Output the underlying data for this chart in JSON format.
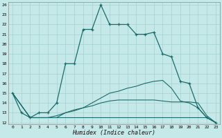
{
  "xlabel": "Humidex (Indice chaleur)",
  "bg_color": "#c5e8e8",
  "line_color": "#1a6b6b",
  "grid_color": "#a8d0d0",
  "xlim": [
    -0.5,
    23.5
  ],
  "ylim": [
    11.8,
    24.3
  ],
  "yticks": [
    12,
    13,
    14,
    15,
    16,
    17,
    18,
    19,
    20,
    21,
    22,
    23,
    24
  ],
  "xticks": [
    0,
    1,
    2,
    3,
    4,
    5,
    6,
    7,
    8,
    9,
    10,
    11,
    12,
    13,
    14,
    15,
    16,
    17,
    18,
    19,
    20,
    21,
    22,
    23
  ],
  "line1_x": [
    0,
    1,
    2,
    3,
    4,
    5,
    6,
    7,
    8,
    9,
    10,
    11,
    12,
    13,
    14,
    15,
    16,
    17,
    18,
    19,
    20,
    21,
    22,
    23
  ],
  "line1_y": [
    15,
    13,
    12.5,
    13,
    13,
    14,
    18,
    18,
    21.5,
    21.5,
    24,
    22,
    22,
    22,
    21,
    21,
    21.2,
    19,
    18.7,
    16.2,
    16,
    13.5,
    12.5,
    12
  ],
  "line2_x": [
    0,
    2,
    3,
    4,
    5,
    6,
    7,
    8,
    9,
    10,
    11,
    12,
    13,
    14,
    15,
    16,
    17,
    18,
    19,
    20,
    21,
    22,
    23
  ],
  "line2_y": [
    15,
    12.5,
    12.5,
    12.5,
    12.5,
    13,
    13.3,
    13.5,
    14,
    14.5,
    15,
    15.2,
    15.5,
    15.7,
    16,
    16.2,
    16.3,
    15.5,
    14.2,
    14.0,
    13.5,
    12.5,
    12
  ],
  "line3_x": [
    0,
    2,
    3,
    4,
    5,
    6,
    7,
    8,
    9,
    10,
    11,
    12,
    13,
    14,
    15,
    16,
    17,
    18,
    19,
    20,
    21,
    22,
    23
  ],
  "line3_y": [
    15,
    12.5,
    12.5,
    12.5,
    12.5,
    12.5,
    12.5,
    12.5,
    12.5,
    12.5,
    12.5,
    12.5,
    12.5,
    12.5,
    12.5,
    12.5,
    12.5,
    12.5,
    12.5,
    12.5,
    12.5,
    12.5,
    12
  ],
  "line4_x": [
    0,
    2,
    3,
    4,
    5,
    6,
    7,
    8,
    9,
    10,
    11,
    12,
    13,
    14,
    15,
    16,
    17,
    18,
    19,
    20,
    21,
    22,
    23
  ],
  "line4_y": [
    15,
    12.5,
    12.5,
    12.5,
    12.7,
    13,
    13.2,
    13.5,
    13.7,
    14,
    14.2,
    14.3,
    14.3,
    14.3,
    14.3,
    14.3,
    14.2,
    14.1,
    14.1,
    14.1,
    14.0,
    12.7,
    12
  ]
}
